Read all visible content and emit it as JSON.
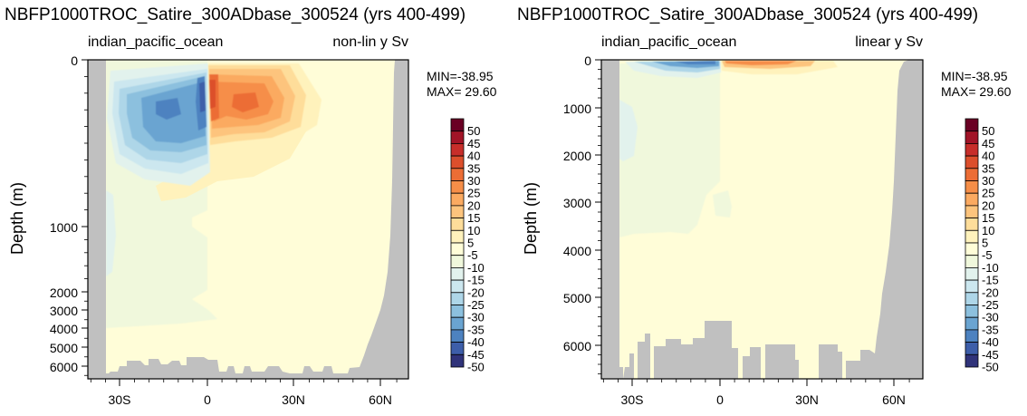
{
  "chart_data": [
    {
      "type": "heatmap",
      "title": "NBFP1000TROC_Satire_300ADbase_300524 (yrs 400-499)",
      "subtitle_left": "indian_pacific_ocean",
      "subtitle_right": "non-lin y Sv",
      "ylabel": "Depth (m)",
      "y_scale": "non-linear",
      "y_ticks": [
        "0",
        "1000",
        "2000",
        "3000",
        "4000",
        "5000",
        "6000"
      ],
      "x_ticks": [
        "30S",
        "0",
        "30N",
        "60N"
      ],
      "xlim": [
        -40,
        72
      ],
      "ylim": [
        0,
        6800
      ],
      "min_label": "MIN=-38.95",
      "max_label": "MAX= 29.60",
      "features": [
        {
          "lat": -12,
          "depth": 600,
          "value": -38.95
        },
        {
          "lat": 14,
          "depth": 550,
          "value": 29.6
        }
      ]
    },
    {
      "type": "heatmap",
      "title": "NBFP1000TROC_Satire_300ADbase_300524 (yrs 400-499)",
      "subtitle_left": "indian_pacific_ocean",
      "subtitle_right": "linear y Sv",
      "ylabel": "Depth (m)",
      "y_scale": "linear",
      "y_ticks": [
        "0",
        "1000",
        "2000",
        "3000",
        "4000",
        "5000",
        "6000"
      ],
      "x_ticks": [
        "30S",
        "0",
        "30N",
        "60N"
      ],
      "xlim": [
        -40,
        72
      ],
      "ylim": [
        0,
        6800
      ],
      "min_label": "MIN=-38.95",
      "max_label": "MAX= 29.60",
      "features": [
        {
          "lat": -12,
          "depth": 60,
          "value": -38.95
        },
        {
          "lat": 14,
          "depth": 60,
          "value": 29.6
        }
      ]
    }
  ],
  "colorbar": {
    "labels": [
      "50",
      "45",
      "40",
      "35",
      "30",
      "25",
      "20",
      "15",
      "10",
      "5",
      "-5",
      "-10",
      "-15",
      "-20",
      "-25",
      "-30",
      "-35",
      "-40",
      "-45",
      "-50"
    ],
    "colors": [
      "#6a0024",
      "#a11427",
      "#c72e2a",
      "#dc4f2c",
      "#ec6d35",
      "#f68e48",
      "#fbaa61",
      "#fdc47d",
      "#fedd9a",
      "#fff2bc",
      "#fffdd8",
      "#f0f8dc",
      "#e2f2ed",
      "#cce7ef",
      "#aed6e8",
      "#8cc0de",
      "#6aa4d1",
      "#4d82c0",
      "#3d5ea9",
      "#30337a"
    ]
  },
  "colors": {
    "land": "#c0c0c0",
    "background_field": "#fffdd8"
  }
}
